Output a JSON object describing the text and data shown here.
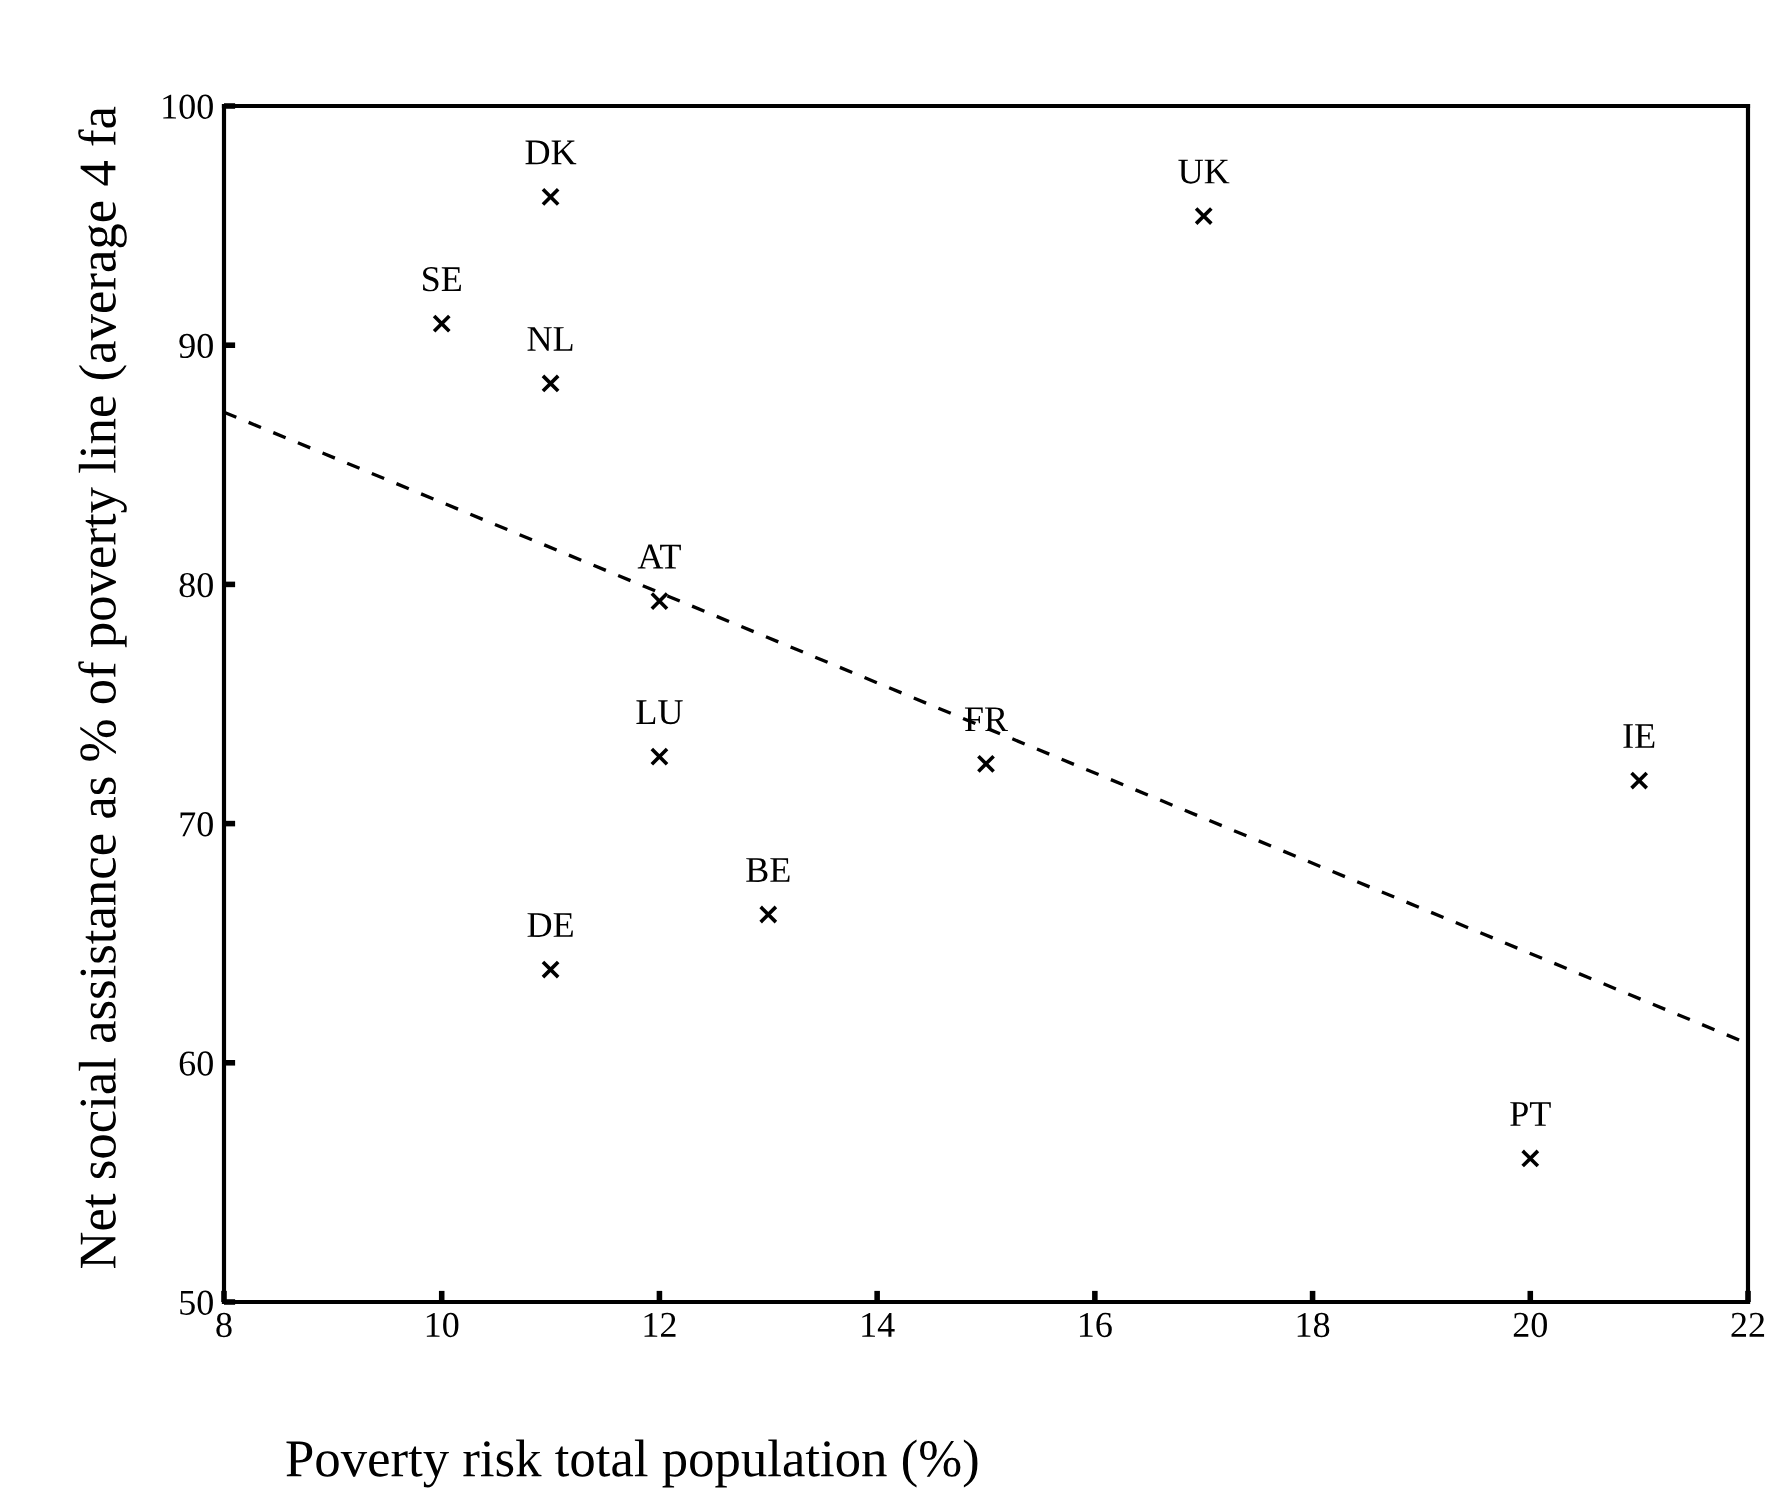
{
  "chart_data": {
    "type": "scatter",
    "xlabel": "Poverty risk total population (%)",
    "ylabel": "Net social assistance as % of poverty line (average 4 fa",
    "xlim": [
      8,
      22
    ],
    "xticks": [
      8,
      10,
      12,
      14,
      16,
      18,
      20,
      22
    ],
    "ylim": [
      50,
      100
    ],
    "yticks": [
      50,
      60,
      70,
      80,
      90,
      100
    ],
    "grid": false,
    "legend": false,
    "marker": "cross",
    "series": [
      {
        "color": "#000000",
        "x": [
          11,
          10,
          11,
          12,
          17,
          12,
          15,
          13,
          11,
          21,
          20
        ],
        "values": [
          96.2,
          90.9,
          88.4,
          79.3,
          95.4,
          72.8,
          72.5,
          66.2,
          63.9,
          71.8,
          56.0
        ]
      },
      {
        "type": "line",
        "line_style": "dashed",
        "marker": "none",
        "color": "#000000",
        "x": [
          8,
          22
        ],
        "values": [
          87.2,
          60.8
        ]
      }
    ],
    "annotations": [
      {
        "text": "DK",
        "x": 11,
        "y": 96.2
      },
      {
        "text": "SE",
        "x": 10,
        "y": 90.9
      },
      {
        "text": "NL",
        "x": 11,
        "y": 88.4
      },
      {
        "text": "AT",
        "x": 12,
        "y": 79.3
      },
      {
        "text": "UK",
        "x": 17,
        "y": 95.4
      },
      {
        "text": "LU",
        "x": 12,
        "y": 72.8
      },
      {
        "text": "FR",
        "x": 15,
        "y": 72.5
      },
      {
        "text": "BE",
        "x": 13,
        "y": 66.2
      },
      {
        "text": "DE",
        "x": 11,
        "y": 63.9
      },
      {
        "text": "IE",
        "x": 21,
        "y": 71.8
      },
      {
        "text": "PT",
        "x": 20,
        "y": 56.0
      }
    ]
  }
}
